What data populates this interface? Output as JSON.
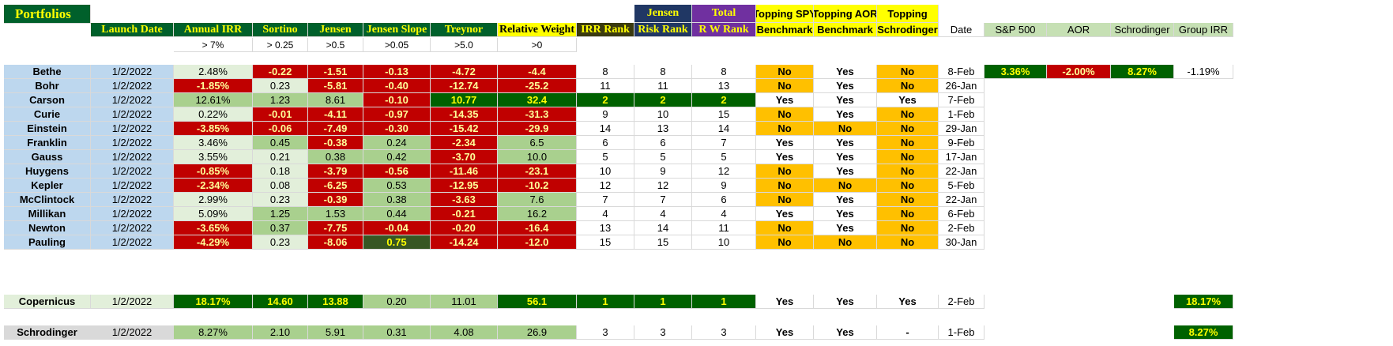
{
  "title": "Portfolios",
  "headers": {
    "launch_date": "Launch Date",
    "annual_irr": "Annual IRR",
    "sortino": "Sortino",
    "jensen": "Jensen",
    "jensen_slope": "Jensen Slope",
    "treynor": "Treynor",
    "relative_weight": "Relative Weight",
    "irr_rank": "IRR Rank",
    "jensen_risk_rank_1": "Jensen",
    "jensen_risk_rank_2": "Risk Rank",
    "total_rw_rank_1": "Total",
    "total_rw_rank_2": "R W Rank",
    "topping_spy_1": "Topping SPY",
    "topping_spy_2": "Benchmark",
    "topping_aor_1": "Topping AOR",
    "topping_aor_2": "Benchmark",
    "topping_schrod_1": "Topping",
    "topping_schrod_2": "Schrodinger",
    "date": "Date",
    "sp500": "S&P 500",
    "aor": "AOR",
    "schrodinger": "Schrodinger",
    "group_irr": "Group IRR"
  },
  "thresholds": {
    "annual_irr": "> 7%",
    "sortino": "> 0.25",
    "jensen": ">0.5",
    "jensen_slope": ">0.05",
    "treynor": ">5.0",
    "relative_weight": ">0"
  },
  "benchmarks": {
    "sp500": "3.36%",
    "aor": "-2.00%",
    "schrodinger": "8.27%",
    "group_irr": "-1.19%"
  },
  "rows": [
    {
      "name": "Bethe",
      "launch": "1/2/2022",
      "irr": "2.48%",
      "sortino": "-0.22",
      "jensen": "-1.51",
      "slope": "-0.13",
      "treynor": "-4.72",
      "rw": "-4.4",
      "irr_rank": "8",
      "risk_rank": "8",
      "total_rank": "8",
      "spy": "No",
      "aor": "Yes",
      "schrod": "No",
      "date": "8-Feb"
    },
    {
      "name": "Bohr",
      "launch": "1/2/2022",
      "irr": "-1.85%",
      "sortino": "0.23",
      "jensen": "-5.81",
      "slope": "-0.40",
      "treynor": "-12.74",
      "rw": "-25.2",
      "irr_rank": "11",
      "risk_rank": "11",
      "total_rank": "13",
      "spy": "No",
      "aor": "Yes",
      "schrod": "No",
      "date": "26-Jan"
    },
    {
      "name": "Carson",
      "launch": "1/2/2022",
      "irr": "12.61%",
      "sortino": "1.23",
      "jensen": "8.61",
      "slope": "-0.10",
      "treynor": "10.77",
      "rw": "32.4",
      "irr_rank": "2",
      "risk_rank": "2",
      "total_rank": "2",
      "spy": "Yes",
      "aor": "Yes",
      "schrod": "Yes",
      "date": "7-Feb"
    },
    {
      "name": "Curie",
      "launch": "1/2/2022",
      "irr": "0.22%",
      "sortino": "-0.01",
      "jensen": "-4.11",
      "slope": "-0.97",
      "treynor": "-14.35",
      "rw": "-31.3",
      "irr_rank": "9",
      "risk_rank": "10",
      "total_rank": "15",
      "spy": "No",
      "aor": "Yes",
      "schrod": "No",
      "date": "1-Feb"
    },
    {
      "name": "Einstein",
      "launch": "1/2/2022",
      "irr": "-3.85%",
      "sortino": "-0.06",
      "jensen": "-7.49",
      "slope": "-0.30",
      "treynor": "-15.42",
      "rw": "-29.9",
      "irr_rank": "14",
      "risk_rank": "13",
      "total_rank": "14",
      "spy": "No",
      "aor": "No",
      "schrod": "No",
      "date": "29-Jan"
    },
    {
      "name": "Franklin",
      "launch": "1/2/2022",
      "irr": "3.46%",
      "sortino": "0.45",
      "jensen": "-0.38",
      "slope": "0.24",
      "treynor": "-2.34",
      "rw": "6.5",
      "irr_rank": "6",
      "risk_rank": "6",
      "total_rank": "7",
      "spy": "Yes",
      "aor": "Yes",
      "schrod": "No",
      "date": "9-Feb"
    },
    {
      "name": "Gauss",
      "launch": "1/2/2022",
      "irr": "3.55%",
      "sortino": "0.21",
      "jensen": "0.38",
      "slope": "0.42",
      "treynor": "-3.70",
      "rw": "10.0",
      "irr_rank": "5",
      "risk_rank": "5",
      "total_rank": "5",
      "spy": "Yes",
      "aor": "Yes",
      "schrod": "No",
      "date": "17-Jan"
    },
    {
      "name": "Huygens",
      "launch": "1/2/2022",
      "irr": "-0.85%",
      "sortino": "0.18",
      "jensen": "-3.79",
      "slope": "-0.56",
      "treynor": "-11.46",
      "rw": "-23.1",
      "irr_rank": "10",
      "risk_rank": "9",
      "total_rank": "12",
      "spy": "No",
      "aor": "Yes",
      "schrod": "No",
      "date": "22-Jan"
    },
    {
      "name": "Kepler",
      "launch": "1/2/2022",
      "irr": "-2.34%",
      "sortino": "0.08",
      "jensen": "-6.25",
      "slope": "0.53",
      "treynor": "-12.95",
      "rw": "-10.2",
      "irr_rank": "12",
      "risk_rank": "12",
      "total_rank": "9",
      "spy": "No",
      "aor": "No",
      "schrod": "No",
      "date": "5-Feb"
    },
    {
      "name": "McClintock",
      "launch": "1/2/2022",
      "irr": "2.99%",
      "sortino": "0.23",
      "jensen": "-0.39",
      "slope": "0.38",
      "treynor": "-3.63",
      "rw": "7.6",
      "irr_rank": "7",
      "risk_rank": "7",
      "total_rank": "6",
      "spy": "No",
      "aor": "Yes",
      "schrod": "No",
      "date": "22-Jan"
    },
    {
      "name": "Millikan",
      "launch": "1/2/2022",
      "irr": "5.09%",
      "sortino": "1.25",
      "jensen": "1.53",
      "slope": "0.44",
      "treynor": "-0.21",
      "rw": "16.2",
      "irr_rank": "4",
      "risk_rank": "4",
      "total_rank": "4",
      "spy": "Yes",
      "aor": "Yes",
      "schrod": "No",
      "date": "6-Feb"
    },
    {
      "name": "Newton",
      "launch": "1/2/2022",
      "irr": "-3.65%",
      "sortino": "0.37",
      "jensen": "-7.75",
      "slope": "-0.04",
      "treynor": "-0.20",
      "rw": "-16.4",
      "irr_rank": "13",
      "risk_rank": "14",
      "total_rank": "11",
      "spy": "No",
      "aor": "Yes",
      "schrod": "No",
      "date": "2-Feb"
    },
    {
      "name": "Pauling",
      "launch": "1/2/2022",
      "irr": "-4.29%",
      "sortino": "0.23",
      "jensen": "-8.06",
      "slope": "0.75",
      "treynor": "-14.24",
      "rw": "-12.0",
      "irr_rank": "15",
      "risk_rank": "15",
      "total_rank": "10",
      "spy": "No",
      "aor": "No",
      "schrod": "No",
      "date": "30-Jan"
    }
  ],
  "copernicus": {
    "name": "Copernicus",
    "launch": "1/2/2022",
    "irr": "18.17%",
    "sortino": "14.60",
    "jensen": "13.88",
    "slope": "0.20",
    "treynor": "11.01",
    "rw": "56.1",
    "irr_rank": "1",
    "risk_rank": "1",
    "total_rank": "1",
    "spy": "Yes",
    "aor": "Yes",
    "schrod": "Yes",
    "date": "2-Feb",
    "group_irr": "18.17%"
  },
  "schrodinger_row": {
    "name": "Schrodinger",
    "launch": "1/2/2022",
    "irr": "8.27%",
    "sortino": "2.10",
    "jensen": "5.91",
    "slope": "0.31",
    "treynor": "4.08",
    "rw": "26.9",
    "irr_rank": "3",
    "risk_rank": "3",
    "total_rank": "3",
    "spy": "Yes",
    "aor": "Yes",
    "schrod": "-",
    "date": "1-Feb",
    "group_irr": "8.27%"
  },
  "colors": {
    "dark_red": "#c00000",
    "light_red_text": "#ffff99",
    "light_green": "#a9d08e",
    "pale_green": "#e2efda",
    "dark_green": "#006100",
    "darker_olive": "#375623",
    "header_green": "#00602b",
    "header_yellow_text": "#ffff00",
    "gold": "#ffc000",
    "blue_name": "#bdd7ee",
    "navy_header": "#203764",
    "purple_header": "#7030a0",
    "yellow_header": "#ffff00",
    "khaki_header": "#c6e0b4",
    "olive_rank": "#3a3a0f"
  }
}
